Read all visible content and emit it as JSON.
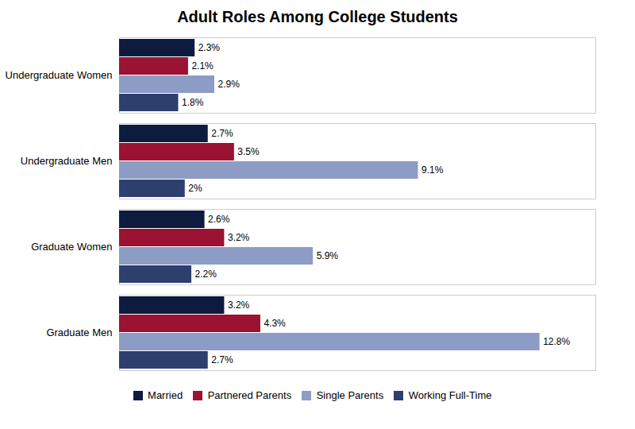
{
  "chart_data": {
    "type": "bar",
    "orientation": "horizontal",
    "title": "Adult Roles Among College Students",
    "categories": [
      "Graduate Men",
      "Graduate Women",
      "Undergraduate Men",
      "Undergraduate Women"
    ],
    "series": [
      {
        "name": "Married",
        "color": "#0d1b3e",
        "values": [
          3.2,
          2.6,
          2.7,
          2.3
        ],
        "value_labels": [
          "3.2%",
          "2.6%",
          "2.7%",
          "2.3%"
        ]
      },
      {
        "name": "Partnered Parents",
        "color": "#9b1232",
        "values": [
          4.3,
          3.2,
          3.5,
          2.1
        ],
        "value_labels": [
          "4.3%",
          "3.2%",
          "3.5%",
          "2.1%"
        ]
      },
      {
        "name": "Single Parents",
        "color": "#8d9cc5",
        "values": [
          12.8,
          5.9,
          9.1,
          2.9
        ],
        "value_labels": [
          "12.8%",
          "5.9%",
          "9.1%",
          "2.9%"
        ]
      },
      {
        "name": "Working Full-Time",
        "color": "#2e3f6e",
        "values": [
          2.7,
          2.2,
          2.0,
          1.8
        ],
        "value_labels": [
          "2.7%",
          "2.2%",
          "2%",
          "1.8%"
        ]
      }
    ],
    "xlim": [
      0,
      14.5
    ],
    "data_labels": true,
    "tick_labels": "y",
    "grid": false,
    "legend": "bottom"
  }
}
